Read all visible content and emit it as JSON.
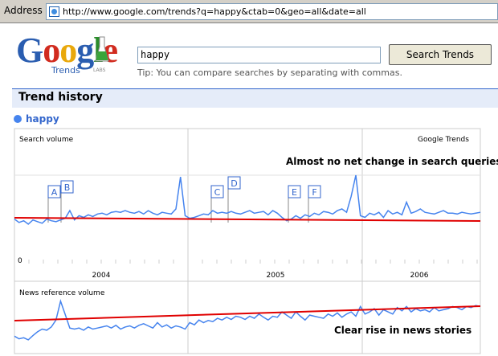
{
  "address": {
    "label": "Address",
    "url": "http://www.google.com/trends?q=happy&ctab=0&geo=all&date=all"
  },
  "logo": {
    "text": "Google",
    "sub": "Trends",
    "labs": "LABS"
  },
  "search": {
    "value": "happy",
    "button": "Search Trends",
    "tip": "Tip: You can compare searches by separating with commas."
  },
  "trend_history": {
    "title": "Trend history"
  },
  "query": {
    "term": "happy",
    "color": "#4684ee"
  },
  "chart_data": [
    {
      "type": "line",
      "title": "",
      "xlabel": "",
      "ylabel": "Search volume",
      "watermark": "Google Trends",
      "y_zero_label": "0",
      "x_ticks": [
        "2004",
        "2005",
        "2006"
      ],
      "markers": [
        "A",
        "B",
        "C",
        "D",
        "E",
        "F"
      ],
      "series": [
        {
          "name": "happy",
          "values": [
            0.48,
            0.44,
            0.46,
            0.42,
            0.47,
            0.45,
            0.43,
            0.48,
            0.46,
            0.45,
            0.47,
            0.49,
            0.58,
            0.47,
            0.52,
            0.5,
            0.53,
            0.51,
            0.54,
            0.55,
            0.53,
            0.56,
            0.57,
            0.56,
            0.58,
            0.56,
            0.55,
            0.57,
            0.54,
            0.58,
            0.55,
            0.53,
            0.56,
            0.55,
            0.54,
            0.6,
            0.98,
            0.52,
            0.49,
            0.5,
            0.52,
            0.54,
            0.53,
            0.58,
            0.55,
            0.56,
            0.55,
            0.57,
            0.55,
            0.54,
            0.56,
            0.58,
            0.55,
            0.56,
            0.57,
            0.53,
            0.58,
            0.55,
            0.5,
            0.46,
            0.48,
            0.52,
            0.49,
            0.53,
            0.51,
            0.55,
            0.53,
            0.57,
            0.56,
            0.54,
            0.58,
            0.6,
            0.56,
            0.75,
            1.0,
            0.52,
            0.5,
            0.55,
            0.53,
            0.56,
            0.5,
            0.58,
            0.54,
            0.56,
            0.53,
            0.68,
            0.55,
            0.57,
            0.6,
            0.56,
            0.55,
            0.54,
            0.56,
            0.58,
            0.55,
            0.55,
            0.54,
            0.56,
            0.55,
            0.54,
            0.55,
            0.56
          ]
        }
      ],
      "trend_line_label": "Almost no net change in search queries"
    },
    {
      "type": "line",
      "ylabel": "News reference volume",
      "series": [
        {
          "name": "happy",
          "values": [
            0.25,
            0.2,
            0.22,
            0.18,
            0.26,
            0.33,
            0.38,
            0.36,
            0.42,
            0.55,
            0.9,
            0.65,
            0.4,
            0.38,
            0.4,
            0.36,
            0.42,
            0.38,
            0.4,
            0.42,
            0.44,
            0.4,
            0.45,
            0.38,
            0.42,
            0.44,
            0.4,
            0.45,
            0.48,
            0.44,
            0.4,
            0.5,
            0.42,
            0.46,
            0.4,
            0.44,
            0.42,
            0.38,
            0.5,
            0.46,
            0.55,
            0.5,
            0.54,
            0.52,
            0.58,
            0.55,
            0.6,
            0.56,
            0.62,
            0.6,
            0.56,
            0.62,
            0.58,
            0.66,
            0.6,
            0.55,
            0.62,
            0.6,
            0.7,
            0.64,
            0.58,
            0.7,
            0.62,
            0.55,
            0.64,
            0.62,
            0.6,
            0.58,
            0.66,
            0.62,
            0.68,
            0.6,
            0.66,
            0.7,
            0.62,
            0.8,
            0.66,
            0.7,
            0.76,
            0.64,
            0.74,
            0.7,
            0.66,
            0.78,
            0.72,
            0.8,
            0.7,
            0.76,
            0.72,
            0.74,
            0.7,
            0.78,
            0.72,
            0.74,
            0.76,
            0.8,
            0.78,
            0.74,
            0.8,
            0.78,
            0.82,
            0.8
          ]
        }
      ],
      "trend_line_label": "Clear rise in news stories"
    }
  ],
  "colors": {
    "line": "#4684ee",
    "trend": "#e00000",
    "grid": "#cccccc"
  }
}
